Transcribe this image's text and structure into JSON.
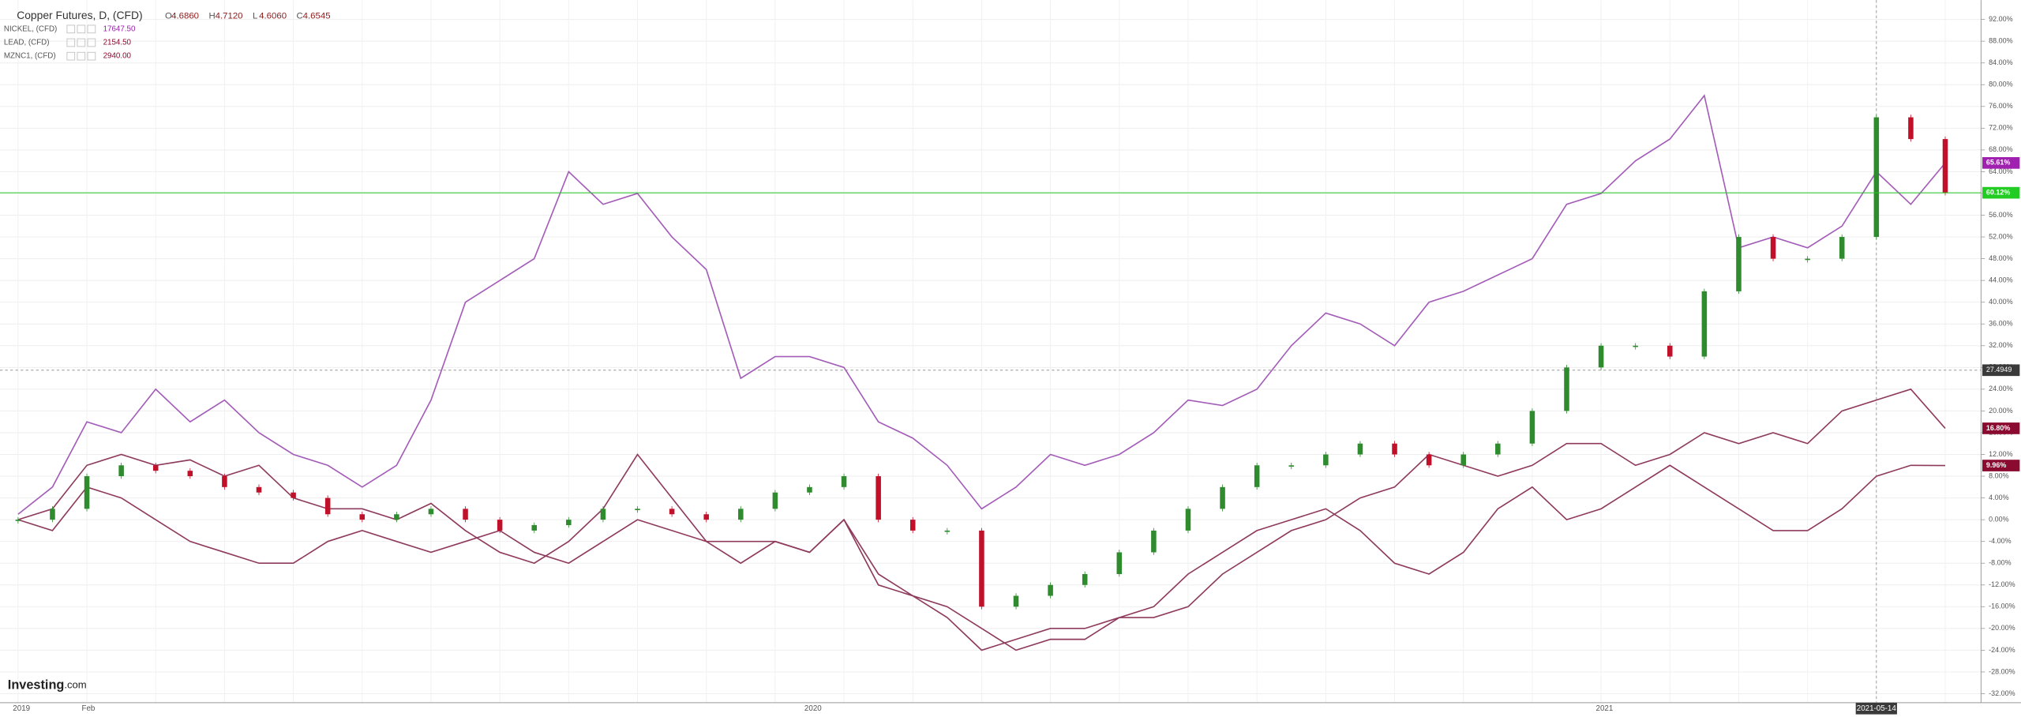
{
  "header": {
    "title": "Copper Futures, D, (CFD)",
    "ohlc": [
      {
        "k": "O",
        "v": "4.6860"
      },
      {
        "k": "H",
        "v": "4.7120"
      },
      {
        "k": "L",
        "v": "4.6060"
      },
      {
        "k": "C",
        "v": "4.6545"
      }
    ],
    "logo": [
      "Investing",
      ".com"
    ]
  },
  "chart_data": {
    "type": "candlestick-compare",
    "categories": [
      "2019",
      null,
      "Feb",
      null,
      null,
      null,
      null,
      null,
      null,
      null,
      null,
      null,
      null,
      null,
      null,
      null,
      null,
      null,
      null,
      null,
      null,
      null,
      null,
      "2020",
      null,
      null,
      null,
      null,
      null,
      null,
      null,
      null,
      null,
      null,
      null,
      null,
      null,
      null,
      null,
      null,
      null,
      null,
      null,
      null,
      null,
      null,
      "2021",
      null,
      null,
      null,
      null,
      null,
      null,
      null,
      "2021-05-14",
      null,
      null
    ],
    "candles": {
      "open": [
        0,
        0,
        2,
        8,
        10,
        9,
        8,
        6,
        5,
        4,
        1,
        0,
        1,
        2,
        0,
        -2,
        -1,
        0,
        2,
        2,
        1,
        0,
        2,
        5,
        6,
        8,
        0,
        -2,
        -2,
        -16,
        -14,
        -12,
        -10,
        -6,
        -2,
        2,
        6,
        10,
        10,
        12,
        14,
        12,
        10,
        12,
        14,
        20,
        28,
        32,
        32,
        30,
        42,
        52,
        48,
        48,
        52,
        74,
        70
      ],
      "close": [
        0,
        2,
        8,
        10,
        9,
        8,
        6,
        5,
        4,
        1,
        0,
        1,
        2,
        0,
        -2,
        -1,
        0,
        2,
        2,
        1,
        0,
        2,
        5,
        6,
        8,
        0,
        -2,
        -2,
        -16,
        -14,
        -12,
        -10,
        -6,
        -2,
        2,
        6,
        10,
        10,
        12,
        14,
        12,
        10,
        12,
        14,
        20,
        28,
        32,
        32,
        30,
        42,
        52,
        48,
        48,
        52,
        74,
        70,
        60.12
      ],
      "up_color": "#2e8b2e",
      "down_color": "#c0102a",
      "tag": "60.12%",
      "tag_color": "#22cc22"
    },
    "series": [
      {
        "name": "NICKEL, (CFD)",
        "price": "17647.50",
        "color": "#a35cb8",
        "tag": "65.61%",
        "tag_color": "#a020b0",
        "values": [
          1,
          6,
          18,
          16,
          24,
          18,
          22,
          16,
          12,
          10,
          6,
          10,
          22,
          40,
          44,
          48,
          64,
          58,
          60,
          52,
          46,
          26,
          30,
          30,
          28,
          18,
          15,
          10,
          2,
          6,
          12,
          10,
          12,
          16,
          22,
          21,
          24,
          32,
          38,
          36,
          32,
          40,
          42,
          45,
          48,
          58,
          60,
          66,
          70,
          78,
          50,
          52,
          50,
          54,
          64,
          58,
          65.61
        ]
      },
      {
        "name": "LEAD, (CFD)",
        "price": "2154.50",
        "color": "#8e3a5c",
        "tag": "16.80%",
        "tag_color": "#8b0a30",
        "values": [
          0,
          2,
          10,
          12,
          10,
          11,
          8,
          10,
          4,
          2,
          2,
          0,
          3,
          -2,
          -6,
          -8,
          -4,
          2,
          12,
          4,
          -4,
          -8,
          -4,
          -6,
          0,
          -10,
          -14,
          -18,
          -24,
          -22,
          -20,
          -20,
          -18,
          -18,
          -16,
          -10,
          -6,
          -2,
          0,
          4,
          6,
          12,
          10,
          8,
          10,
          14,
          14,
          10,
          12,
          16,
          14,
          16,
          14,
          20,
          22,
          24,
          16.8
        ]
      },
      {
        "name": "MZNC1, (CFD)",
        "price": "2940.00",
        "color": "#8e3a5c",
        "tag": "9.96%",
        "tag_color": "#8b0a30",
        "values": [
          0,
          -2,
          6,
          4,
          0,
          -4,
          -6,
          -8,
          -8,
          -4,
          -2,
          -4,
          -6,
          -4,
          -2,
          -6,
          -8,
          -4,
          0,
          -2,
          -4,
          -4,
          -4,
          -6,
          0,
          -12,
          -14,
          -16,
          -20,
          -24,
          -22,
          -22,
          -18,
          -16,
          -10,
          -6,
          -2,
          0,
          2,
          -2,
          -8,
          -10,
          -6,
          2,
          6,
          0,
          2,
          6,
          10,
          6,
          2,
          -2,
          -2,
          2,
          8,
          10,
          9.96
        ]
      }
    ],
    "crosshair": 27.4949,
    "ylim": [
      -32,
      92
    ],
    "yticks": [
      {
        "value": 92,
        "label": "92.00%"
      },
      {
        "value": 88,
        "label": "88.00%"
      },
      {
        "value": 84,
        "label": "84.00%"
      },
      {
        "value": 80,
        "label": "80.00%"
      },
      {
        "value": 76,
        "label": "76.00%"
      },
      {
        "value": 72,
        "label": "72.00%"
      },
      {
        "value": 68,
        "label": "68.00%"
      },
      {
        "value": 64,
        "label": "64.00%"
      },
      {
        "value": 60,
        "label": "60.00%"
      },
      {
        "value": 56,
        "label": "56.00%"
      },
      {
        "value": 52,
        "label": "52.00%"
      },
      {
        "value": 48,
        "label": "48.00%"
      },
      {
        "value": 44,
        "label": "44.00%"
      },
      {
        "value": 40,
        "label": "40.00%"
      },
      {
        "value": 36,
        "label": "36.00%"
      },
      {
        "value": 32,
        "label": "32.00%"
      },
      {
        "value": 28,
        "label": "28.00%"
      },
      {
        "value": 24,
        "label": "24.00%"
      },
      {
        "value": 20,
        "label": "20.00%"
      },
      {
        "value": 16,
        "label": "16.00%"
      },
      {
        "value": 12,
        "label": "12.00%"
      },
      {
        "value": 8,
        "label": "8.00%"
      },
      {
        "value": 4,
        "label": "4.00%"
      },
      {
        "value": 0,
        "label": "0.00%"
      },
      {
        "value": -4,
        "label": "-4.00%"
      },
      {
        "value": -8,
        "label": "-8.00%"
      },
      {
        "value": -12,
        "label": "-12.00%"
      },
      {
        "value": -16,
        "label": "-16.00%"
      },
      {
        "value": -20,
        "label": "-20.00%"
      },
      {
        "value": -24,
        "label": "-24.00%"
      },
      {
        "value": -28,
        "label": "-28.00%"
      },
      {
        "value": -32,
        "label": "-32.00%"
      }
    ],
    "grid": true
  }
}
